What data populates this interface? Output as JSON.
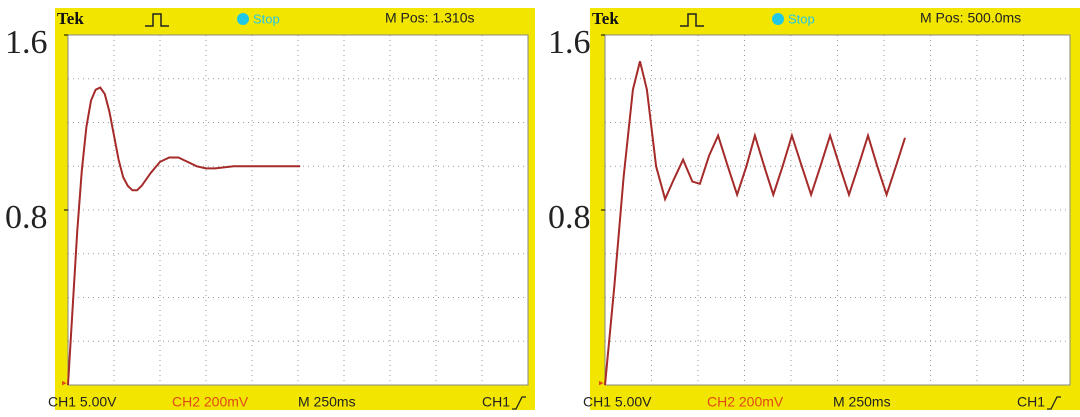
{
  "chart_data": [
    {
      "type": "line",
      "brand": "Tek",
      "status": "Stop",
      "position": "M Pos: 1.310s",
      "footer": [
        "CH1  5.00V",
        "CH2  200mV",
        "M 250ms",
        "CH1"
      ],
      "xlim": [
        0,
        2500
      ],
      "ylim": [
        0,
        1.6
      ],
      "yticks": [
        1.6,
        0.8
      ],
      "x": [
        0,
        25,
        50,
        75,
        100,
        125,
        150,
        175,
        200,
        225,
        250,
        275,
        300,
        325,
        350,
        375,
        400,
        450,
        500,
        550,
        600,
        650,
        700,
        750,
        800,
        900,
        1000,
        1100,
        1262
      ],
      "series": [
        {
          "color": "#a52a2a",
          "values": [
            0,
            0.35,
            0.7,
            0.98,
            1.18,
            1.3,
            1.35,
            1.36,
            1.33,
            1.25,
            1.14,
            1.03,
            0.95,
            0.91,
            0.89,
            0.89,
            0.91,
            0.97,
            1.02,
            1.04,
            1.04,
            1.02,
            1.0,
            0.99,
            0.99,
            1.0,
            1.0,
            1.0,
            1.0
          ]
        }
      ]
    },
    {
      "type": "line",
      "brand": "Tek",
      "status": "Stop",
      "position": "M Pos: 500.0ms",
      "footer": [
        "CH1  5.00V",
        "CH2  200mV",
        "M 250ms",
        "CH1"
      ],
      "xlim": [
        0,
        2500
      ],
      "ylim": [
        0,
        1.6
      ],
      "yticks": [
        1.6,
        0.8
      ],
      "x": [
        0,
        50,
        100,
        150,
        188,
        225,
        275,
        323,
        370,
        420,
        470,
        510,
        560,
        608,
        660,
        710,
        760,
        806,
        856,
        905,
        955,
        1005,
        1058,
        1108,
        1158,
        1210,
        1262,
        1312,
        1362,
        1414,
        1464,
        1514,
        1564,
        1613
      ],
      "series": [
        {
          "color": "#a52a2a",
          "values": [
            0,
            0.45,
            0.95,
            1.35,
            1.48,
            1.35,
            1.0,
            0.85,
            0.94,
            1.03,
            0.93,
            0.92,
            1.05,
            1.14,
            1.0,
            0.87,
            1.0,
            1.14,
            1.0,
            0.87,
            1.0,
            1.14,
            1.0,
            0.87,
            1.0,
            1.14,
            1.0,
            0.87,
            1.0,
            1.14,
            1.0,
            0.87,
            1.0,
            1.13
          ]
        }
      ]
    }
  ]
}
